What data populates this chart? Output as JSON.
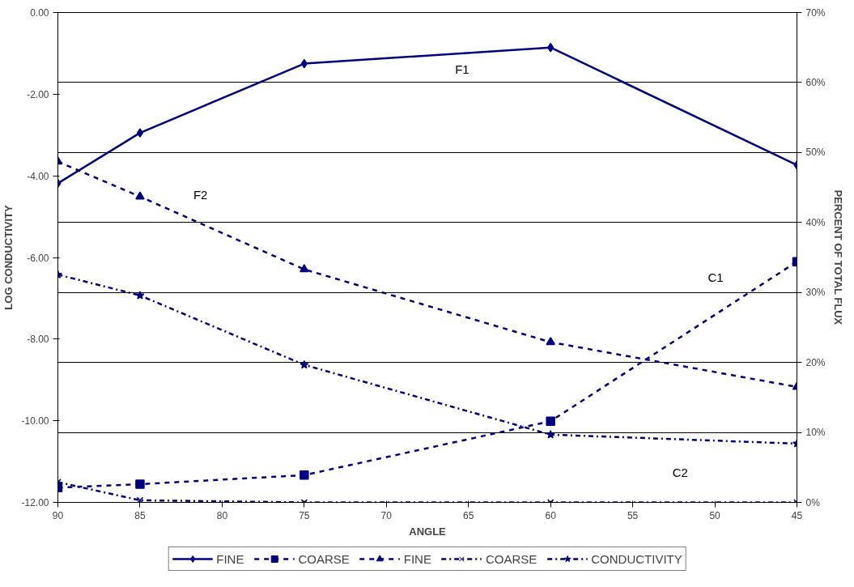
{
  "chart_data": {
    "type": "line",
    "xlabel": "ANGLE",
    "ylabel": "LOG CONDUCTIVITY",
    "y2label": "PERCENT OF TOTAL FLUX",
    "x": [
      90,
      85,
      75,
      60,
      45
    ],
    "xlim": [
      90,
      45
    ],
    "xticks": [
      90,
      85,
      80,
      75,
      70,
      65,
      60,
      55,
      50,
      45
    ],
    "ylim": [
      -12,
      0
    ],
    "yticks": [
      {
        "value": -12,
        "label": "-12.00"
      },
      {
        "value": -10,
        "label": "-10.00"
      },
      {
        "value": -8,
        "label": "-8.00"
      },
      {
        "value": -6,
        "label": "-6.00"
      },
      {
        "value": -4,
        "label": "-4.00"
      },
      {
        "value": -2,
        "label": "-2.00"
      },
      {
        "value": 0,
        "label": "0.00"
      }
    ],
    "y2lim": [
      0,
      70
    ],
    "y2ticks": [
      {
        "value": 0,
        "label": "0%"
      },
      {
        "value": 10,
        "label": "10%"
      },
      {
        "value": 20,
        "label": "20%"
      },
      {
        "value": 30,
        "label": "30%"
      },
      {
        "value": 40,
        "label": "40%"
      },
      {
        "value": 50,
        "label": "50%"
      },
      {
        "value": 60,
        "label": "60%"
      },
      {
        "value": 70,
        "label": "70%"
      }
    ],
    "grid": "y",
    "legend": "bottom",
    "series": [
      {
        "name": "FINE",
        "color": "#000080",
        "axis": "y2",
        "marker": "diamond",
        "line_style": "solid",
        "values": [
          45.6,
          52.8,
          62.7,
          65.0,
          48.2
        ]
      },
      {
        "name": "COARSE",
        "color": "#000080",
        "axis": "y2",
        "marker": "square",
        "line_style": "dashed",
        "values": [
          2.1,
          2.6,
          3.9,
          11.6,
          34.4
        ]
      },
      {
        "name": "FINE",
        "color": "#000080",
        "axis": "y2",
        "marker": "triangle",
        "line_style": "dashed",
        "values": [
          48.7,
          43.7,
          33.3,
          22.9,
          16.5
        ]
      },
      {
        "name": "COARSE",
        "color": "#000080",
        "axis": "y2",
        "marker": "cross",
        "line_style": "dashdot",
        "values": [
          2.9,
          0.3,
          0,
          0,
          0
        ]
      },
      {
        "name": "CONDUCTIVITY",
        "color": "#000080",
        "axis": "y",
        "marker": "star",
        "line_style": "dashdot",
        "values": [
          -6.42,
          -6.93,
          -8.63,
          -10.34,
          -10.56
        ]
      }
    ],
    "annotations": [
      "F1",
      "F2",
      "C1",
      "C2"
    ]
  }
}
